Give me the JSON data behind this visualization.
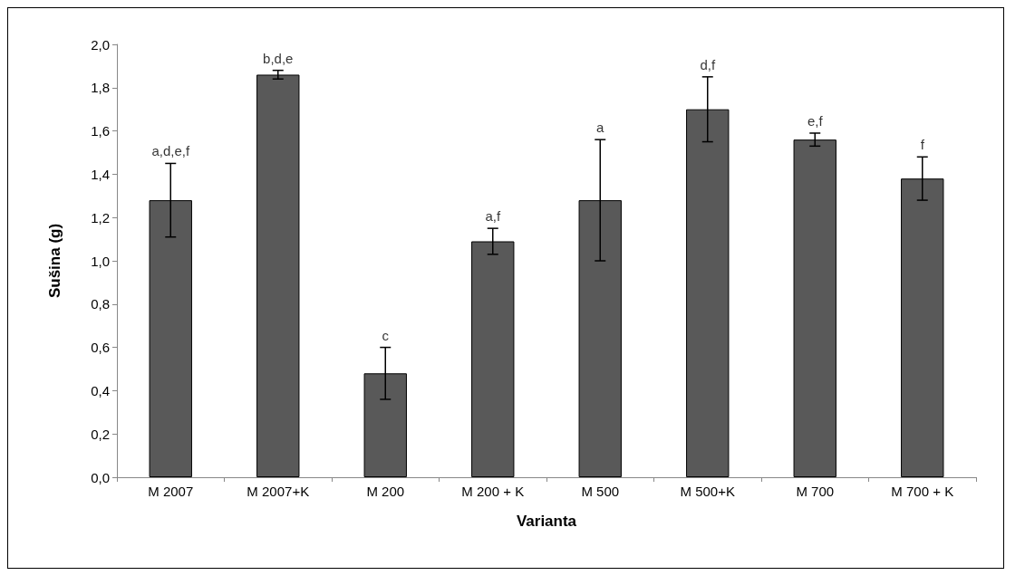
{
  "chart_data": {
    "type": "bar",
    "xlabel": "Varianta",
    "ylabel": "Sušina (g)",
    "categories": [
      "M 2007",
      "M 2007+K",
      "M 200",
      "M 200 + K",
      "M 500",
      "M 500+K",
      "M 700",
      "M 700 + K"
    ],
    "values": [
      1.28,
      1.86,
      0.48,
      1.09,
      1.28,
      1.7,
      1.56,
      1.38
    ],
    "errors": [
      0.17,
      0.02,
      0.12,
      0.06,
      0.28,
      0.15,
      0.03,
      0.1
    ],
    "color": "#595959",
    "ylim": [
      0,
      2.0
    ],
    "yticks": [
      {
        "value": 0,
        "label": "0,0"
      },
      {
        "value": 0.2,
        "label": "0,2"
      },
      {
        "value": 0.4,
        "label": "0,4"
      },
      {
        "value": 0.6,
        "label": "0,6"
      },
      {
        "value": 0.8,
        "label": "0,8"
      },
      {
        "value": 1.0,
        "label": "1,0"
      },
      {
        "value": 1.2,
        "label": "1,2"
      },
      {
        "value": 1.4,
        "label": "1,4"
      },
      {
        "value": 1.6,
        "label": "1,6"
      },
      {
        "value": 1.8,
        "label": "1,8"
      },
      {
        "value": 2.0,
        "label": "2,0"
      }
    ],
    "annotations": [
      {
        "text": "a,d,e,f",
        "x": "M 2007",
        "y": 1.45
      },
      {
        "text": "b,d,e",
        "x": "M 2007+K",
        "y": 1.88
      },
      {
        "text": "c",
        "x": "M 200",
        "y": 0.6
      },
      {
        "text": "a,f",
        "x": "M 200 + K",
        "y": 1.15
      },
      {
        "text": "a",
        "x": "M 500",
        "y": 1.56
      },
      {
        "text": "d,f",
        "x": "M 500+K",
        "y": 1.85
      },
      {
        "text": "e,f",
        "x": "M 700",
        "y": 1.59
      },
      {
        "text": "f",
        "x": "M 700 + K",
        "y": 1.48
      }
    ]
  }
}
